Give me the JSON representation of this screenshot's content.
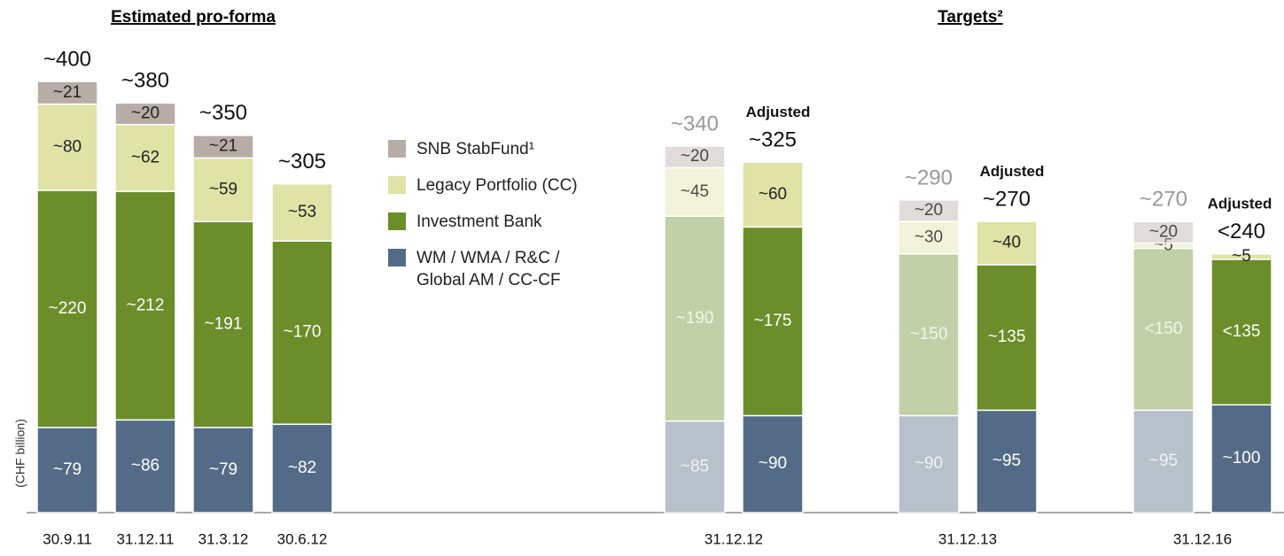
{
  "chart_data": {
    "type": "bar",
    "stacked": true,
    "headings": [
      "Estimated pro-forma",
      "Targets²"
    ],
    "ylabel": "(CHF billion)",
    "adjusted_label": "Adjusted",
    "categories": [
      "30.9.11",
      "31.12.11",
      "31.3.12",
      "30.6.12",
      "31.12.12",
      null,
      "31.12.13",
      null,
      "31.12.16",
      null
    ],
    "faded": [
      false,
      false,
      false,
      false,
      true,
      false,
      true,
      false,
      true,
      false
    ],
    "adjusted": [
      false,
      false,
      false,
      false,
      false,
      true,
      false,
      true,
      false,
      true
    ],
    "ylim": [
      0,
      400
    ],
    "series": [
      {
        "name": "WM / WMA / R&C / Global AM / CC-CF",
        "color": "#536b86",
        "text_color": "#ffffff",
        "values": [
          79,
          86,
          79,
          82,
          85,
          90,
          90,
          95,
          95,
          100
        ],
        "value_labels": [
          "~79",
          "~86",
          "~79",
          "~82",
          "~85",
          "~90",
          "~90",
          "~95",
          "~95",
          "~100"
        ]
      },
      {
        "name": "Investment Bank",
        "color": "#6b8e2a",
        "text_color": "#ffffff",
        "values": [
          220,
          212,
          191,
          170,
          190,
          175,
          150,
          135,
          150,
          135
        ],
        "value_labels": [
          "~220",
          "~212",
          "~191",
          "~170",
          "~190",
          "~175",
          "~150",
          "~135",
          "<150",
          "<135"
        ]
      },
      {
        "name": "Legacy Portfolio (CC)",
        "color": "#dfe3a6",
        "text_color": "#222222",
        "values": [
          80,
          62,
          59,
          53,
          45,
          60,
          30,
          40,
          5,
          5
        ],
        "value_labels": [
          "~80",
          "~62",
          "~59",
          "~53",
          "~45",
          "~60",
          "~30",
          "~40",
          "~5",
          "~5"
        ]
      },
      {
        "name": "SNB StabFund¹",
        "color": "#b8aca6",
        "text_color": "#222222",
        "values": [
          21,
          20,
          21,
          null,
          20,
          null,
          20,
          null,
          20,
          null
        ],
        "value_labels": [
          "~21",
          "~20",
          "~21",
          null,
          "~20",
          null,
          "~20",
          null,
          "~20",
          null
        ]
      }
    ],
    "totals": [
      400,
      380,
      350,
      305,
      340,
      325,
      290,
      270,
      270,
      240
    ],
    "total_labels": [
      "~400",
      "~380",
      "~350",
      "~305",
      "~340",
      "~325",
      "~290",
      "~270",
      "~270",
      "<240"
    ]
  }
}
